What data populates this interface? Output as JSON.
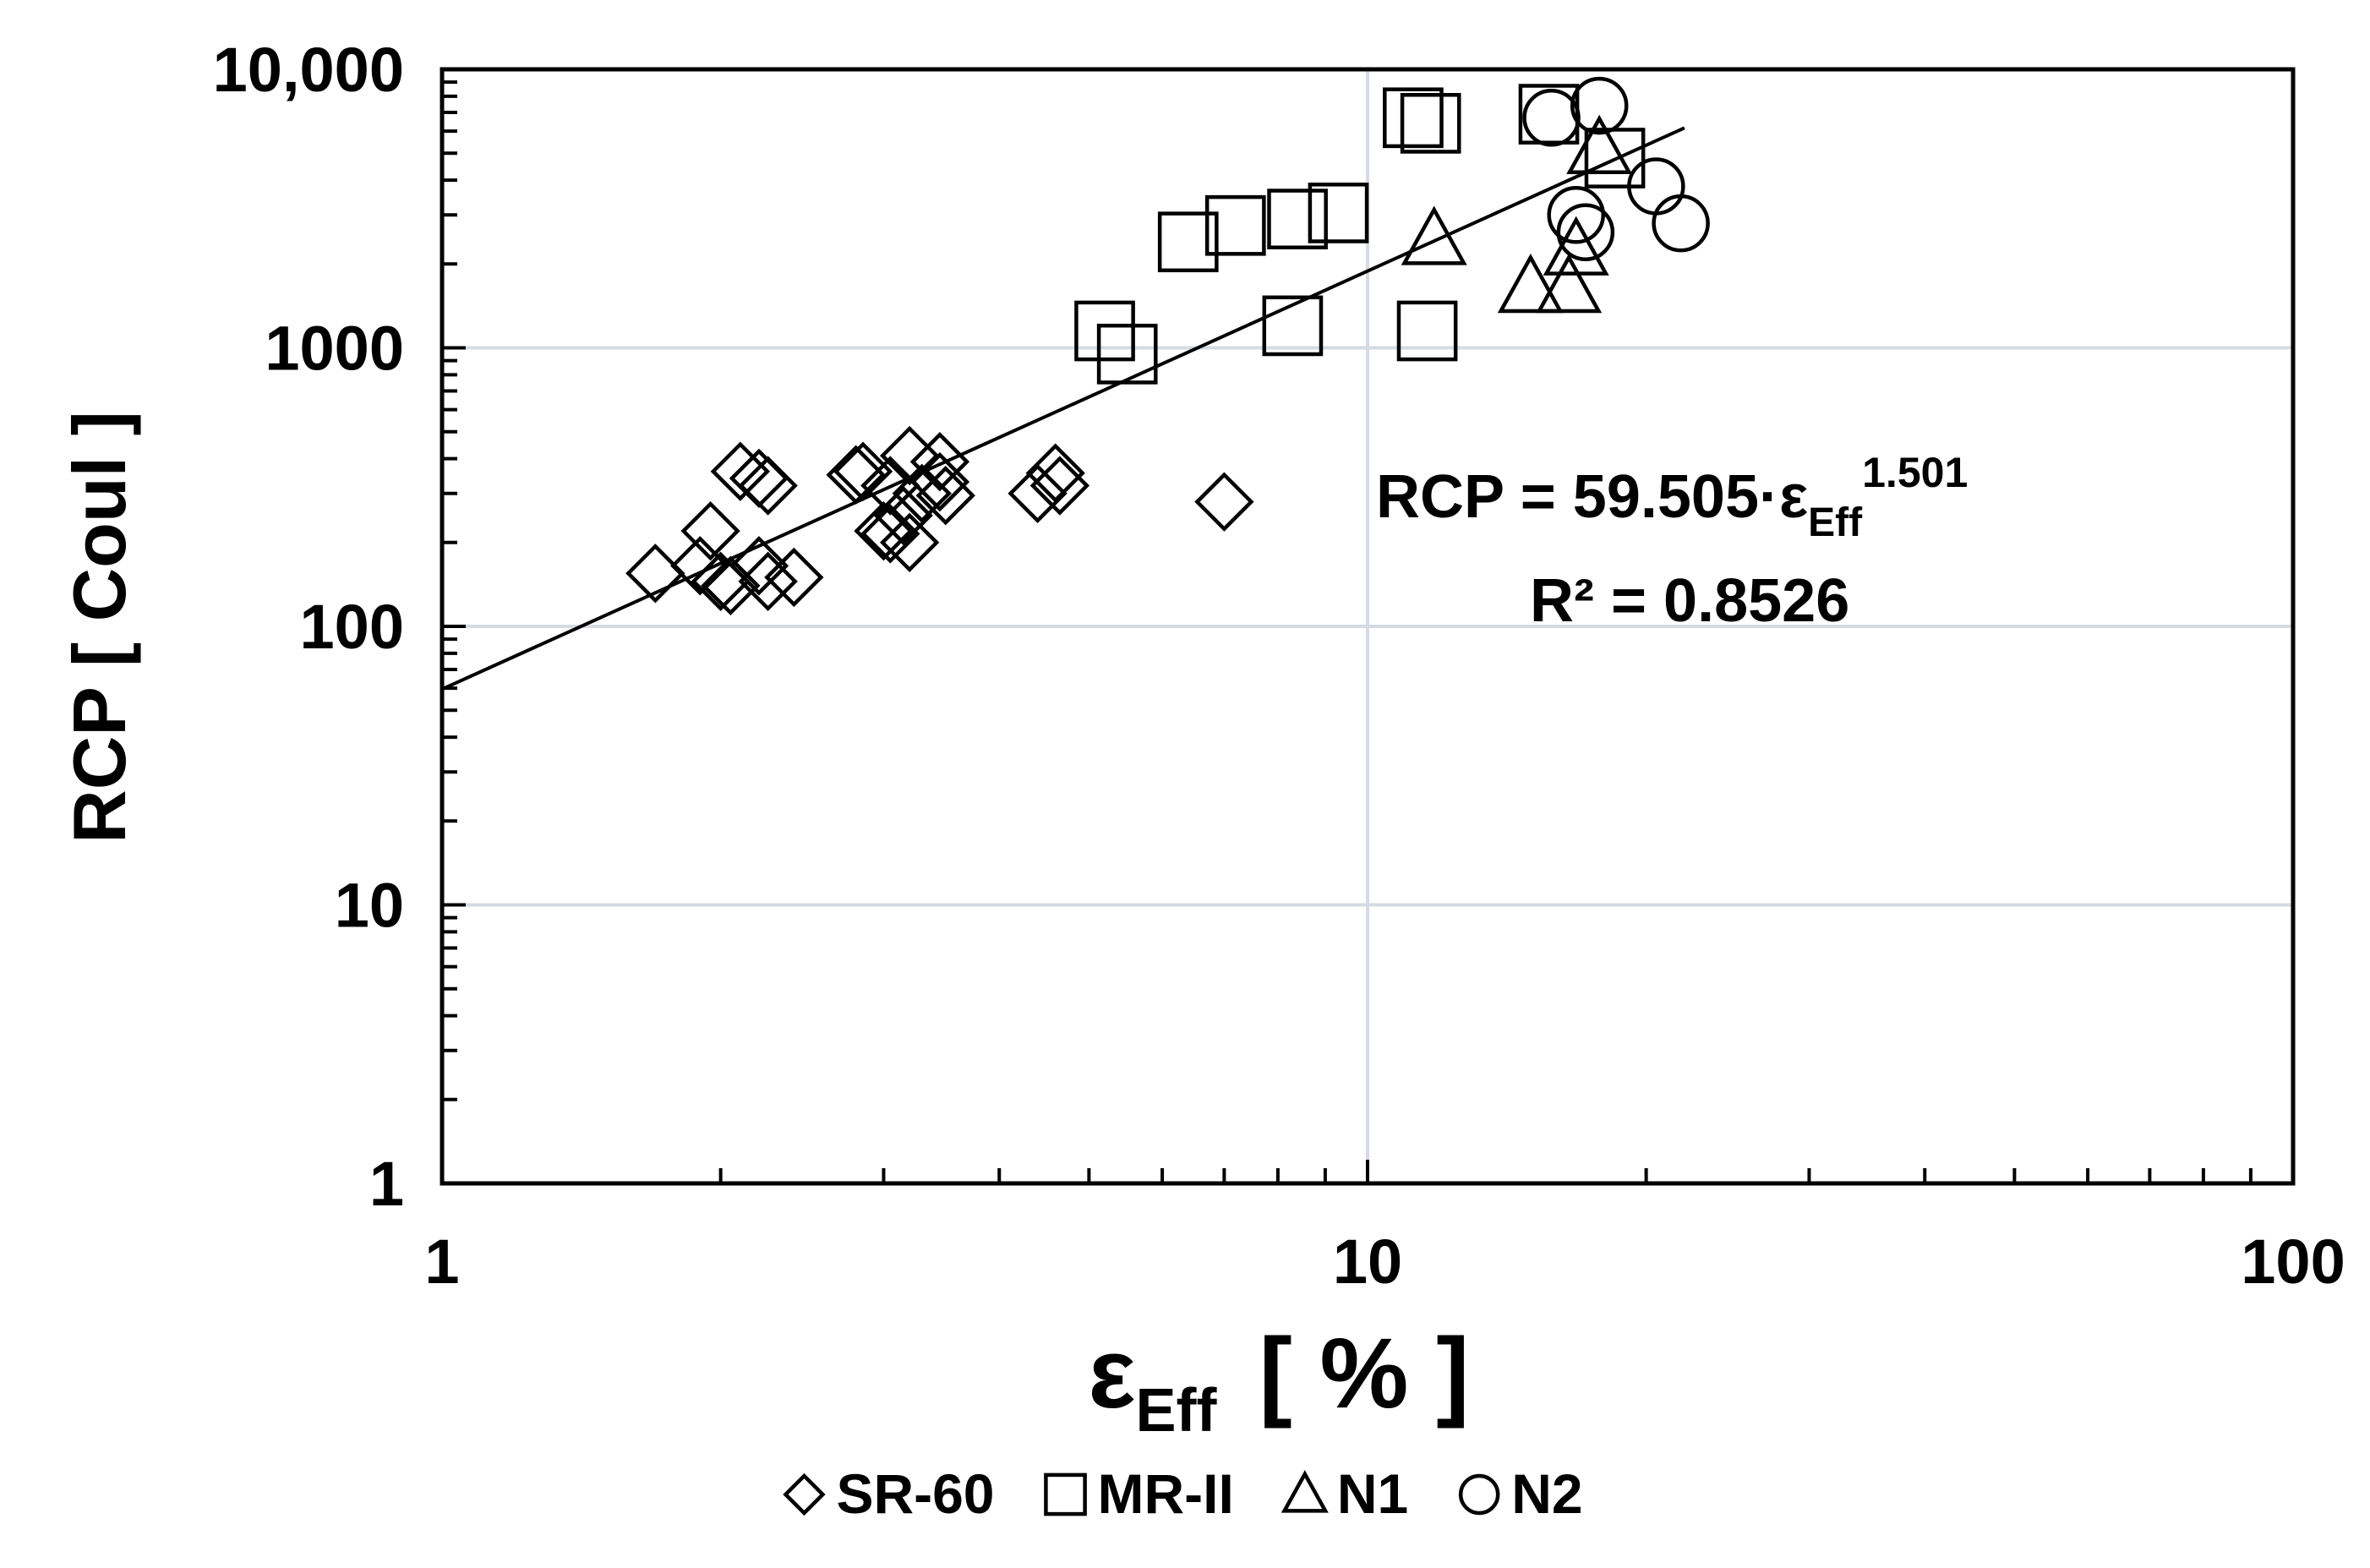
{
  "chart_data": {
    "type": "scatter",
    "x_scale": "log",
    "y_scale": "log",
    "xlim": [
      1,
      100
    ],
    "ylim": [
      1,
      10000
    ],
    "x_ticks": [
      "1",
      "10",
      "100"
    ],
    "y_ticks": [
      "1",
      "10",
      "100",
      "1000",
      "10,000"
    ],
    "xlabel_main": "ε",
    "xlabel_sub": "Eff",
    "xlabel_unit": "[ % ]",
    "ylabel": "RCP  [ Coul ]",
    "grid": true,
    "legend_position": "bottom",
    "series": [
      {
        "name": "SR-60",
        "marker": "diamond",
        "points": [
          [
            1.7,
            155
          ],
          [
            1.9,
            165
          ],
          [
            1.95,
            220
          ],
          [
            2.0,
            145
          ],
          [
            2.05,
            140
          ],
          [
            2.1,
            360
          ],
          [
            2.2,
            340
          ],
          [
            2.25,
            320
          ],
          [
            2.2,
            165
          ],
          [
            2.25,
            145
          ],
          [
            2.4,
            150
          ],
          [
            2.8,
            350
          ],
          [
            2.85,
            360
          ],
          [
            3.0,
            220
          ],
          [
            3.05,
            215
          ],
          [
            3.05,
            320
          ],
          [
            3.15,
            250
          ],
          [
            3.2,
            200
          ],
          [
            3.2,
            410
          ],
          [
            3.3,
            300
          ],
          [
            3.45,
            330
          ],
          [
            3.45,
            390
          ],
          [
            3.5,
            295
          ],
          [
            4.4,
            300
          ],
          [
            4.6,
            355
          ],
          [
            4.65,
            320
          ],
          [
            7.0,
            280
          ]
        ]
      },
      {
        "name": "MR-II",
        "marker": "square",
        "points": [
          [
            5.2,
            1150
          ],
          [
            5.5,
            950
          ],
          [
            6.4,
            2400
          ],
          [
            7.2,
            2750
          ],
          [
            8.3,
            1200
          ],
          [
            8.4,
            2900
          ],
          [
            9.3,
            3050
          ],
          [
            11.2,
            6700
          ],
          [
            11.7,
            6400
          ],
          [
            11.6,
            1150
          ],
          [
            15.7,
            6900
          ],
          [
            18.5,
            4800
          ]
        ]
      },
      {
        "name": "N1",
        "marker": "triangle",
        "points": [
          [
            11.8,
            2450
          ],
          [
            15.0,
            1650
          ],
          [
            16.5,
            1650
          ],
          [
            16.8,
            2250
          ],
          [
            17.8,
            5200
          ]
        ]
      },
      {
        "name": "N2",
        "marker": "circle",
        "points": [
          [
            15.8,
            6700
          ],
          [
            17.8,
            7400
          ],
          [
            16.8,
            3000
          ],
          [
            17.2,
            2600
          ],
          [
            20.5,
            3800
          ],
          [
            21.8,
            2800
          ]
        ]
      }
    ],
    "trendline": {
      "coefficient": 59.505,
      "exponent": 1.501,
      "x_range": [
        1,
        22
      ],
      "label_main": "RCP = 59.505·ε",
      "label_sub": "Eff",
      "label_exp": "1.501",
      "r2_label": "R² = 0.8526"
    }
  }
}
